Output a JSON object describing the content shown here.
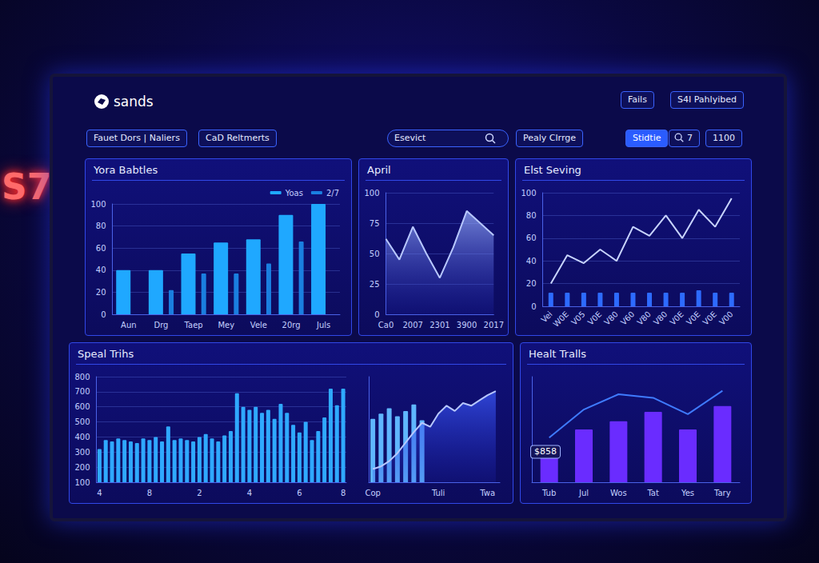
{
  "header": {
    "logo": "sands",
    "buttons": [
      "Fails",
      "S4I Pahlyibed"
    ],
    "filters": [
      "Fauet Dors | Naliers",
      "CaD Reltmerts"
    ],
    "search": "Esevict",
    "controls": [
      "Pealy Clrrge",
      "Stidtie",
      "7",
      "1100"
    ]
  },
  "background_sign": "S7",
  "chart_data": [
    {
      "type": "bar",
      "title": "Yora Babtles",
      "categories": [
        "Aun",
        "Drg",
        "Taep",
        "Mey",
        "Vele",
        "20rg",
        "Juls"
      ],
      "series": [
        {
          "name": "Yoas",
          "color": "#1fa8ff",
          "values": [
            40,
            40,
            55,
            65,
            68,
            90,
            100
          ]
        },
        {
          "name": "2/7",
          "color": "#1a7fe0",
          "values": [
            null,
            22,
            37,
            37,
            46,
            66,
            null
          ]
        }
      ],
      "ylim": [
        0,
        100
      ],
      "yticks": [
        0,
        20,
        40,
        60,
        80,
        100
      ],
      "grid": true,
      "legend": "top-right"
    },
    {
      "type": "area",
      "title": "April",
      "categories": [
        "Ca0",
        null,
        "2007",
        null,
        "2301",
        null,
        "3900",
        null,
        "2017"
      ],
      "values": [
        62,
        45,
        72,
        50,
        30,
        55,
        85,
        75,
        65
      ],
      "color": "#9db4ff",
      "ylim": [
        0,
        100
      ],
      "yticks": [
        0,
        25,
        50,
        75,
        100
      ],
      "grid": true
    },
    {
      "type": "line",
      "title": "Elst Seving",
      "categories": [
        "Vei",
        "W0E",
        "V05",
        "V0E",
        "V80",
        "V60",
        "V80",
        "V80",
        "V0E",
        "V0E",
        "V0E",
        "V00"
      ],
      "series": [
        {
          "type": "line",
          "color": "#c8d4ff",
          "values": [
            20,
            45,
            38,
            50,
            40,
            70,
            62,
            80,
            60,
            85,
            70,
            95
          ]
        },
        {
          "type": "bar",
          "color": "#2d6bff",
          "values": [
            12,
            12,
            12,
            12,
            12,
            12,
            12,
            12,
            12,
            14,
            12,
            12
          ]
        }
      ],
      "ylim": [
        0,
        100
      ],
      "yticks": [
        0,
        20,
        40,
        60,
        80,
        100
      ],
      "grid": true
    },
    {
      "type": "bar",
      "title": "Speal Trihs",
      "categories": [
        "4",
        null,
        null,
        null,
        null,
        null,
        null,
        null,
        "8",
        null,
        null,
        null,
        null,
        null,
        null,
        null,
        "2",
        null,
        null,
        null,
        null,
        null,
        null,
        null,
        "4",
        null,
        null,
        null,
        null,
        null,
        null,
        null,
        "6",
        null,
        null,
        null,
        null,
        null,
        null,
        "8"
      ],
      "values": [
        320,
        380,
        370,
        390,
        380,
        370,
        360,
        390,
        380,
        400,
        370,
        470,
        380,
        390,
        380,
        370,
        400,
        420,
        390,
        370,
        410,
        440,
        690,
        600,
        580,
        600,
        560,
        580,
        520,
        620,
        560,
        480,
        430,
        500,
        380,
        440,
        530,
        720,
        610,
        720
      ],
      "color": "#2fa9ff",
      "ylim": [
        100,
        800
      ],
      "yticks": [
        100,
        200,
        300,
        400,
        500,
        600,
        700,
        800
      ],
      "grid": true
    },
    {
      "type": "bar",
      "categories": [
        "Cop",
        null,
        null,
        null,
        null,
        null,
        null,
        null,
        "Tuli",
        null,
        null,
        null,
        null,
        null,
        "Twa",
        null
      ],
      "series": [
        {
          "type": "bar",
          "color": "#5fb6ff",
          "values": [
            480,
            520,
            560,
            500,
            540,
            590,
            470,
            null,
            null,
            null,
            null,
            null,
            null,
            null,
            null,
            null
          ]
        },
        {
          "type": "area",
          "color": "#3d5cff",
          "values": [
            100,
            120,
            160,
            220,
            300,
            380,
            450,
            420,
            520,
            580,
            540,
            600,
            580,
            620,
            660,
            690
          ]
        }
      ],
      "ylim": [
        0,
        800
      ],
      "tick_labels": "x"
    },
    {
      "type": "bar",
      "title": "Healt Tralls",
      "categories": [
        "Tub",
        "Jul",
        "Wos",
        "Tat",
        "Yes",
        "Tary"
      ],
      "series": [
        {
          "type": "bar",
          "color": "#6a2cff",
          "values": [
            25,
            45,
            52,
            60,
            45,
            65
          ]
        },
        {
          "type": "line",
          "color": "#3f7bff",
          "values": [
            38,
            62,
            75,
            72,
            58,
            78
          ]
        }
      ],
      "ylim": [
        0,
        90
      ],
      "tick_labels": "x",
      "annotation": "$858"
    }
  ]
}
